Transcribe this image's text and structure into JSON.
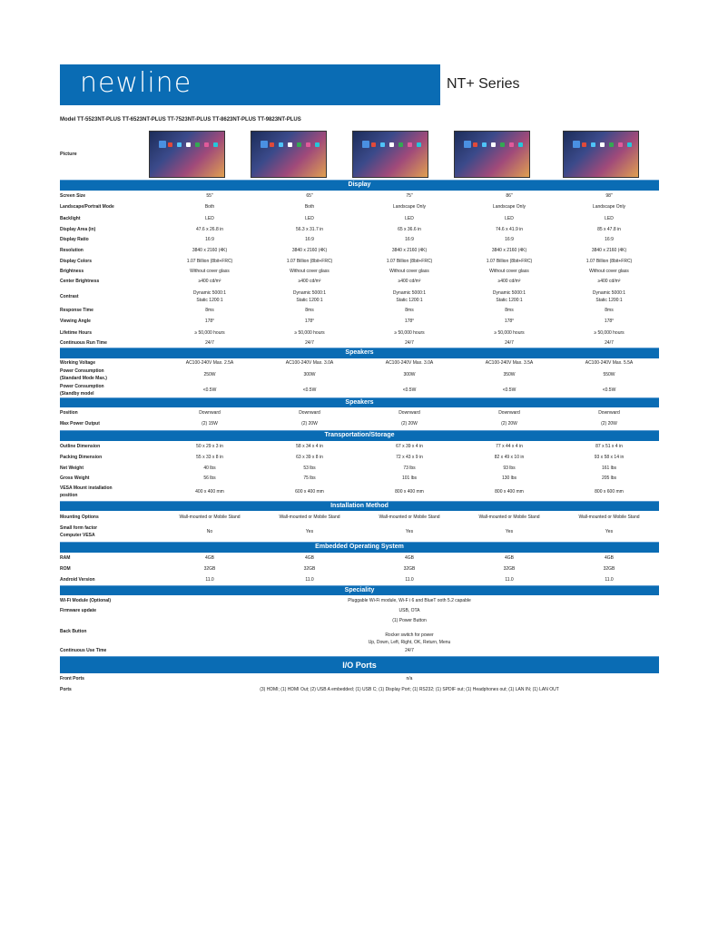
{
  "header": {
    "logo": "newline",
    "series": "NT+ Series",
    "model_line": "Model TT-5523NT-PLUS TT-6523NT-PLUS TT-7523NT-PLUS TT-8623NT-PLUS TT-9823NT-PLUS"
  },
  "picture_label": "Picture",
  "colors": {
    "brand_blue": "#0a6cb4"
  },
  "sections": [
    {
      "title": "Display",
      "rows": [
        {
          "label": "Screen Size",
          "values": [
            "55\"",
            "65\"",
            "75\"",
            "86\"",
            "98\""
          ]
        },
        {
          "label": "Landscape/Portrait Mode",
          "values": [
            "Both",
            "Both",
            "Landscape Only",
            "Landscape Only",
            "Landscape Only"
          ]
        },
        {
          "label": "Backlight",
          "values": [
            "LED",
            "LED",
            "LED",
            "LED",
            "LED"
          ]
        },
        {
          "label": "Display Area (in)",
          "values": [
            "47.6 x 26.8 in",
            "56.3 x 31.7 in",
            "65 x 36.6 in",
            "74.6 x 41.9 in",
            "85 x 47.8 in"
          ]
        },
        {
          "label": "Display Ratio",
          "values": [
            "16:9",
            "16:9",
            "16:9",
            "16:9",
            "16:9"
          ]
        },
        {
          "label": "Resolution",
          "values": [
            "3840 x 2160 (4K)",
            "3840 x 2160 (4K)",
            "3840 x 2160 (4K)",
            "3840 x 2160 (4K)",
            "3840 x 2160 (4K)"
          ]
        },
        {
          "label": "Display Colors",
          "values": [
            "1.07 Billion (8bit+FRC)",
            "1.07 Billion (8bit+FRC)",
            "1.07 Billion (8bit+FRC)",
            "1.07 Billion (8bit+FRC)",
            "1.07 Billion (8bit+FRC)"
          ]
        },
        {
          "label": "Brightness",
          "values": [
            "Without cover glass",
            "Without cover glass",
            "Without cover glass",
            "Without cover glass",
            "Without cover glass"
          ]
        },
        {
          "label": "Center Brightness",
          "values": [
            "≥400 cd/m²",
            "≥400 cd/m²",
            "≥400 cd/m²",
            "≥400 cd/m²",
            "≥400 cd/m²"
          ]
        },
        {
          "label": "Contrast",
          "values": [
            "Dynamic 5000:1\nStatic 1200:1",
            "Dynamic 5000:1\nStatic 1200:1",
            "Dynamic 5000:1\nStatic 1200:1",
            "Dynamic 5000:1\nStatic 1200:1",
            "Dynamic 5000:1\nStatic 1200:1"
          ]
        },
        {
          "label": "Response Time",
          "values": [
            "8ms",
            "8ms",
            "8ms",
            "8ms",
            "8ms"
          ]
        },
        {
          "label": "Viewing Angle",
          "values": [
            "178°",
            "178°",
            "178°",
            "178°",
            "178°"
          ]
        },
        {
          "label": "Lifetime Hours",
          "values": [
            "≥ 50,000 hours",
            "≥ 50,000 hours",
            "≥ 50,000 hours",
            "≥ 50,000 hours",
            "≥ 50,000 hours"
          ]
        },
        {
          "label": "Continuous Run Time",
          "values": [
            "24/7",
            "24/7",
            "24/7",
            "24/7",
            "24/7"
          ]
        }
      ]
    },
    {
      "title": "Speakers",
      "rows": [
        {
          "label": "Working Voltage",
          "values": [
            "AC100-240V  Max. 2.5A",
            "AC100-240V  Max. 3.0A",
            "AC100-240V  Max. 3.0A",
            "AC100-240V  Max. 3.5A",
            "AC100-240V  Max. 5.5A"
          ]
        },
        {
          "label": "Power Consumption\n(Standard Mode Max.)",
          "values": [
            "250W",
            "300W",
            "300W",
            "350W",
            "550W"
          ]
        },
        {
          "label": "Power Consumption\n(Standby model",
          "values": [
            "<0.5W",
            "<0.5W",
            "<0.5W",
            "<0.5W",
            "<0.5W"
          ]
        }
      ]
    },
    {
      "title": "Speakers",
      "rows": [
        {
          "label": "Position",
          "values": [
            "Downward",
            "Downward",
            "Downward",
            "Downward",
            "Downward"
          ]
        },
        {
          "label": "Max Power Output",
          "values": [
            "(2) 15W",
            "(2) 20W",
            "(2) 20W",
            "(2) 20W",
            "(2) 20W"
          ]
        }
      ]
    },
    {
      "title": "Transportation/Storage",
      "rows": [
        {
          "label": "Outline Dimension",
          "values": [
            "50 x 29 x 3 in",
            "58 x 34 x 4 in",
            "67 x 39 x 4 in",
            "77 x 44 x 4 in",
            "87 x 51 x 4 in"
          ]
        },
        {
          "label": "Packing Dimension",
          "values": [
            "55 x 33 x 8 in",
            "63 x 39 x 8 in",
            "72 x 43 x 9 in",
            "82 x 49 x 10 in",
            "93 x 58 x 14 in"
          ]
        },
        {
          "label": "Net Weight",
          "values": [
            "40 lbs",
            "53 lbs",
            "73 lbs",
            "93 lbs",
            "161 lbs"
          ]
        },
        {
          "label": "Gross Weight",
          "values": [
            "56 lbs",
            "75 lbs",
            "101 lbs",
            "130 lbs",
            "205 lbs"
          ]
        },
        {
          "label": "VESA Mount installation\nposition",
          "values": [
            "400 x 400 mm",
            "600 x 400 mm",
            "800 x 400 mm",
            "800 x 400 mm",
            "800 x 600 mm"
          ]
        }
      ]
    },
    {
      "title": "Installation Method",
      "rows": [
        {
          "label": "Mounting Options",
          "values": [
            "Wall-mounted or Mobile Stand",
            "Wall-mounted or Mobile Stand",
            "Wall-mounted or Mobile Stand",
            "Wall-mounted or Mobile Stand",
            "Wall-mounted or Mobile Stand"
          ]
        },
        {
          "label": "Small form factor\nComputer VESA",
          "values": [
            "No",
            "Yes",
            "Yes",
            "Yes",
            "Yes"
          ]
        }
      ]
    },
    {
      "title": "Embedded Operating System",
      "rows": [
        {
          "label": "RAM",
          "values": [
            "4GB",
            "4GB",
            "4GB",
            "4GB",
            "4GB"
          ]
        },
        {
          "label": "ROM",
          "values": [
            "32GB",
            "32GB",
            "32GB",
            "32GB",
            "32GB"
          ]
        },
        {
          "label": "Android Version",
          "values": [
            "11.0",
            "11.0",
            "11.0",
            "11.0",
            "11.0"
          ]
        }
      ]
    },
    {
      "title": "Speciality",
      "rows": [
        {
          "label": "Wi-Fi Module (Optional)",
          "value": "Pluggable Wi-Fi module, Wi-F i 6 and BlueT ooth 5.2 capable"
        },
        {
          "label": "Firmware update",
          "value": "USB, OTA"
        },
        {
          "label": "Back Button",
          "value": "(1) Power Button\n\nRocker switch for power\nUp, Down, Left, Right, OK, Return, Menu"
        },
        {
          "label": "Continuous Use Time",
          "value": "24/7"
        }
      ]
    },
    {
      "title": "I/O Ports",
      "big": true,
      "rows": [
        {
          "label": "Front Ports",
          "value": "n/a"
        },
        {
          "label": "Ports",
          "value": "(3) HDMI; (1) HDMI Out; (2) USB A embedded; (1) USB C; (1) Display Port; (1) RS232; (1) SPDIF out; (1) Headphones out; (1) LAN IN; (1) LAN OUT"
        }
      ]
    }
  ]
}
